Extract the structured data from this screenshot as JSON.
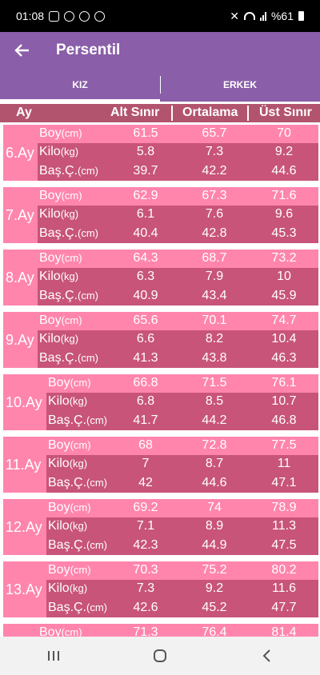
{
  "status": {
    "time": "01:08",
    "battery": "%61"
  },
  "app_bar": {
    "title": "Persentil"
  },
  "tabs": [
    {
      "label": "KIZ",
      "active": true
    },
    {
      "label": "ERKEK",
      "active": false
    }
  ],
  "table_header": {
    "month": "Ay",
    "low": "Alt Sınır",
    "mid": "Ortalama",
    "high": "Üst Sınır"
  },
  "row_labels": {
    "boy": "Boy",
    "boy_unit": "(cm)",
    "kilo": "Kilo",
    "kilo_unit": "(kg)",
    "bas": "Baş.Ç.",
    "bas_unit": "(cm)"
  },
  "months": [
    {
      "label": "6.Ay",
      "boy": [
        "61.5",
        "65.7",
        "70"
      ],
      "kilo": [
        "5.8",
        "7.3",
        "9.2"
      ],
      "bas": [
        "39.7",
        "42.2",
        "44.6"
      ]
    },
    {
      "label": "7.Ay",
      "boy": [
        "62.9",
        "67.3",
        "71.6"
      ],
      "kilo": [
        "6.1",
        "7.6",
        "9.6"
      ],
      "bas": [
        "40.4",
        "42.8",
        "45.3"
      ]
    },
    {
      "label": "8.Ay",
      "boy": [
        "64.3",
        "68.7",
        "73.2"
      ],
      "kilo": [
        "6.3",
        "7.9",
        "10"
      ],
      "bas": [
        "40.9",
        "43.4",
        "45.9"
      ]
    },
    {
      "label": "9.Ay",
      "boy": [
        "65.6",
        "70.1",
        "74.7"
      ],
      "kilo": [
        "6.6",
        "8.2",
        "10.4"
      ],
      "bas": [
        "41.3",
        "43.8",
        "46.3"
      ]
    },
    {
      "label": "10.Ay",
      "boy": [
        "66.8",
        "71.5",
        "76.1"
      ],
      "kilo": [
        "6.8",
        "8.5",
        "10.7"
      ],
      "bas": [
        "41.7",
        "44.2",
        "46.8"
      ]
    },
    {
      "label": "11.Ay",
      "boy": [
        "68",
        "72.8",
        "77.5"
      ],
      "kilo": [
        "7",
        "8.7",
        "11"
      ],
      "bas": [
        "42",
        "44.6",
        "47.1"
      ]
    },
    {
      "label": "12.Ay",
      "boy": [
        "69.2",
        "74",
        "78.9"
      ],
      "kilo": [
        "7.1",
        "8.9",
        "11.3"
      ],
      "bas": [
        "42.3",
        "44.9",
        "47.5"
      ]
    },
    {
      "label": "13.Ay",
      "boy": [
        "70.3",
        "75.2",
        "80.2"
      ],
      "kilo": [
        "7.3",
        "9.2",
        "11.6"
      ],
      "bas": [
        "42.6",
        "45.2",
        "47.7"
      ]
    },
    {
      "label": "",
      "boy": [
        "71.3",
        "76.4",
        "81.4"
      ],
      "kilo": [
        "",
        "",
        ""
      ],
      "bas": [
        "",
        "",
        ""
      ]
    }
  ]
}
